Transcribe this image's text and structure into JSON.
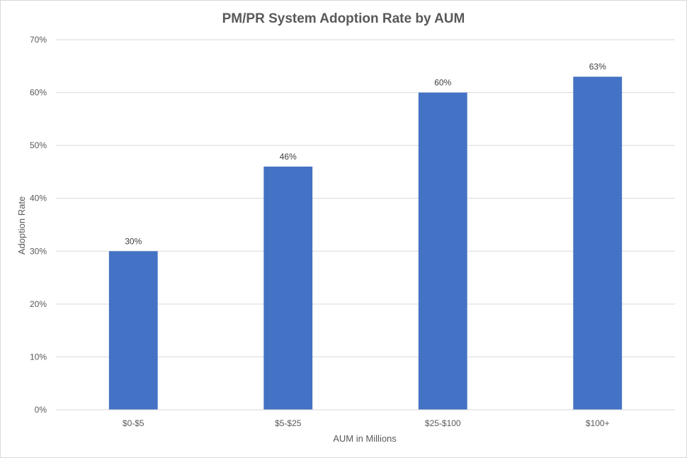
{
  "chart_data": {
    "type": "bar",
    "title": "PM/PR System Adoption Rate by AUM",
    "xlabel": "AUM in Millions",
    "ylabel": "Adoption Rate",
    "categories": [
      "$0-$5",
      "$5-$25",
      "$25-$100",
      "$100+"
    ],
    "values": [
      30,
      46,
      60,
      63
    ],
    "data_labels": [
      "30%",
      "46%",
      "60%",
      "63%"
    ],
    "ylim": [
      0,
      70
    ],
    "y_ticks": [
      0,
      10,
      20,
      30,
      40,
      50,
      60,
      70
    ],
    "y_tick_labels": [
      "0%",
      "10%",
      "20%",
      "30%",
      "40%",
      "50%",
      "60%",
      "70%"
    ],
    "grid": true,
    "legend": "none",
    "bar_color": "#4472C4"
  }
}
